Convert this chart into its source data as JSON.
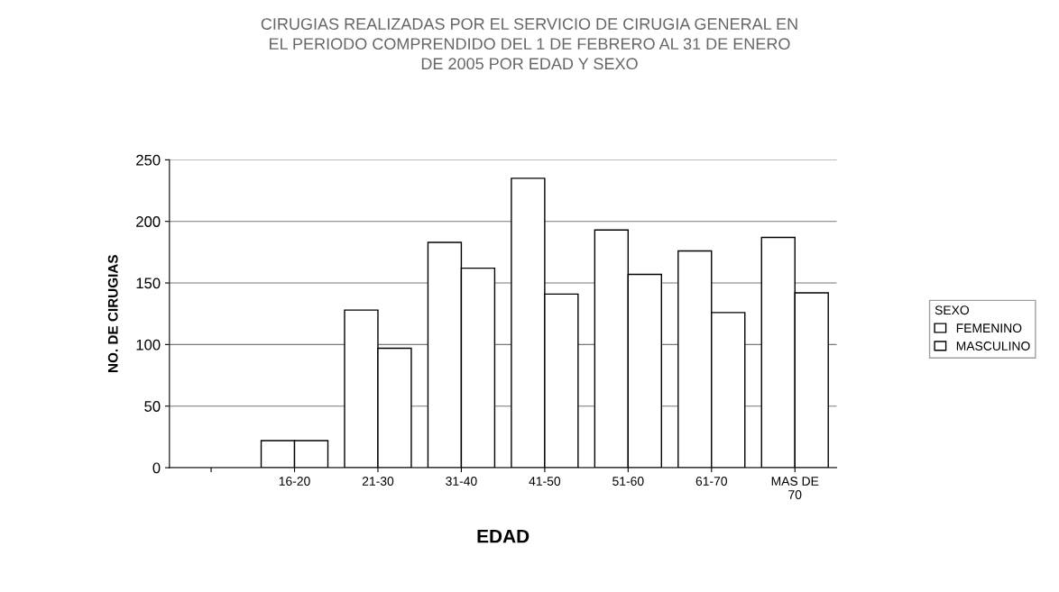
{
  "chart_data": {
    "type": "bar",
    "title": "CIRUGIAS REALIZADAS POR EL SERVICIO DE CIRUGIA GENERAL EN\nEL PERIODO COMPRENDIDO DEL 1 DE FEBRERO AL 31 DE ENERO\nDE 2005 POR EDAD Y SEXO",
    "xlabel": "EDAD",
    "ylabel": "NO. DE CIRUGIAS",
    "legend_title": "SEXO",
    "categories": [
      null,
      "16-20",
      "21-30",
      "31-40",
      "41-50",
      "51-60",
      "61-70",
      "MAS DE\n70"
    ],
    "series": [
      {
        "name": "FEMENINO",
        "color": "#ffffff",
        "values": [
          null,
          22,
          128,
          183,
          235,
          193,
          176,
          187
        ]
      },
      {
        "name": "MASCULINO",
        "color": "#ffffff",
        "values": [
          null,
          22,
          97,
          162,
          141,
          157,
          126,
          142
        ]
      }
    ],
    "ylim": [
      0,
      250
    ],
    "yticks": [
      0,
      50,
      100,
      150,
      200,
      250
    ],
    "grid": "y",
    "legend": "right"
  }
}
